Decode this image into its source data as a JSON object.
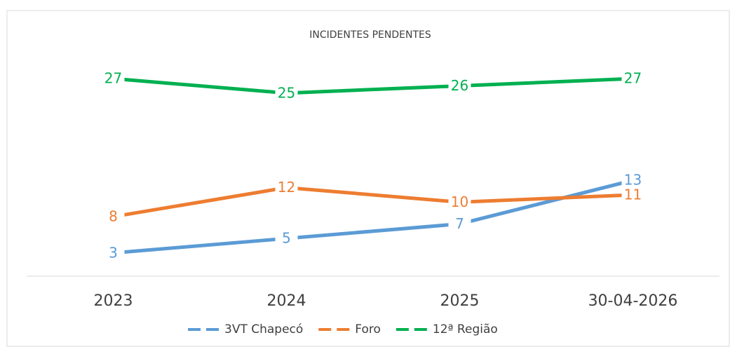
{
  "chart_data": {
    "type": "line",
    "title": "INCIDENTES PENDENTES",
    "categories": [
      "2023",
      "2024",
      "2025",
      "30-04-2026"
    ],
    "series": [
      {
        "name": "3VT Chapecó",
        "color": "#5b9bd5",
        "values": [
          3,
          5,
          7,
          13
        ]
      },
      {
        "name": "Foro",
        "color": "#ed7d31",
        "values": [
          8,
          12,
          10,
          11
        ]
      },
      {
        "name": "12ª Região",
        "color": "#00b050",
        "values": [
          27,
          25,
          26,
          27
        ]
      }
    ],
    "ylim": [
      0,
      30
    ],
    "legend": "bottom"
  }
}
